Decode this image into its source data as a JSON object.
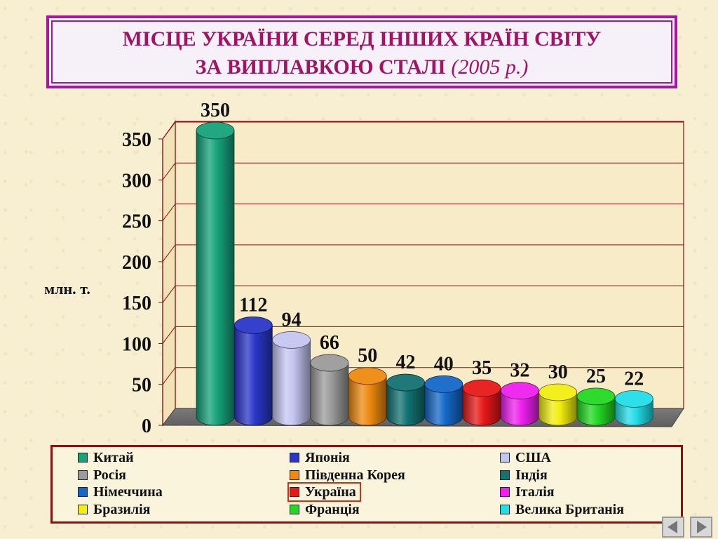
{
  "title": {
    "line1": "МІСЦЕ  УКРАЇНИ  СЕРЕД  ІНШИХ  КРАЇН  СВІТУ",
    "line2_main": "ЗА  ВИПЛАВКОЮ  СТАЛІ",
    "line2_year": "(2005 р.)"
  },
  "chart_data": {
    "type": "bar",
    "style": "3d-cylinder",
    "ylabel": "млн. т.",
    "ylim": [
      0,
      350
    ],
    "yticks": [
      "0",
      "50",
      "100",
      "150",
      "200",
      "250",
      "300",
      "350"
    ],
    "grid": true,
    "legend_position": "bottom",
    "categories": [
      "Китай",
      "Японія",
      "США",
      "Росія",
      "Південна Корея",
      "Індія",
      "Німеччина",
      "Україна",
      "Італія",
      "Бразилія",
      "Франція",
      "Велика Британія"
    ],
    "values": [
      350,
      112,
      94,
      66,
      50,
      42,
      40,
      35,
      32,
      30,
      25,
      22
    ],
    "value_labels": [
      "350",
      "112",
      "94",
      "66",
      "50",
      "42",
      "40",
      "35",
      "32",
      "30",
      "25",
      "22"
    ],
    "colors": [
      "#16a37a",
      "#2a36c8",
      "#c4c6f2",
      "#9b9b9b",
      "#ee8a10",
      "#137272",
      "#1468c8",
      "#e81818",
      "#ee20ee",
      "#f2ee10",
      "#22d822",
      "#22dde8"
    ],
    "highlighted_category": "Україна"
  },
  "legend": {
    "items": [
      {
        "label": "Китай",
        "color": "#16a37a"
      },
      {
        "label": "Японія",
        "color": "#2a36c8"
      },
      {
        "label": "США",
        "color": "#c4c6f2"
      },
      {
        "label": "Росія",
        "color": "#9b9b9b"
      },
      {
        "label": "Південна Корея",
        "color": "#ee8a10"
      },
      {
        "label": "Індія",
        "color": "#137272"
      },
      {
        "label": "Німеччина",
        "color": "#1468c8"
      },
      {
        "label": "Україна",
        "color": "#e81818"
      },
      {
        "label": "Італія",
        "color": "#ee20ee"
      },
      {
        "label": "Бразилія",
        "color": "#f2ee10"
      },
      {
        "label": "Франція",
        "color": "#22d822"
      },
      {
        "label": "Велика Британія",
        "color": "#22dde8"
      }
    ]
  },
  "navigation": {
    "prev_icon": "triangle-left-icon",
    "next_icon": "triangle-right-icon"
  }
}
